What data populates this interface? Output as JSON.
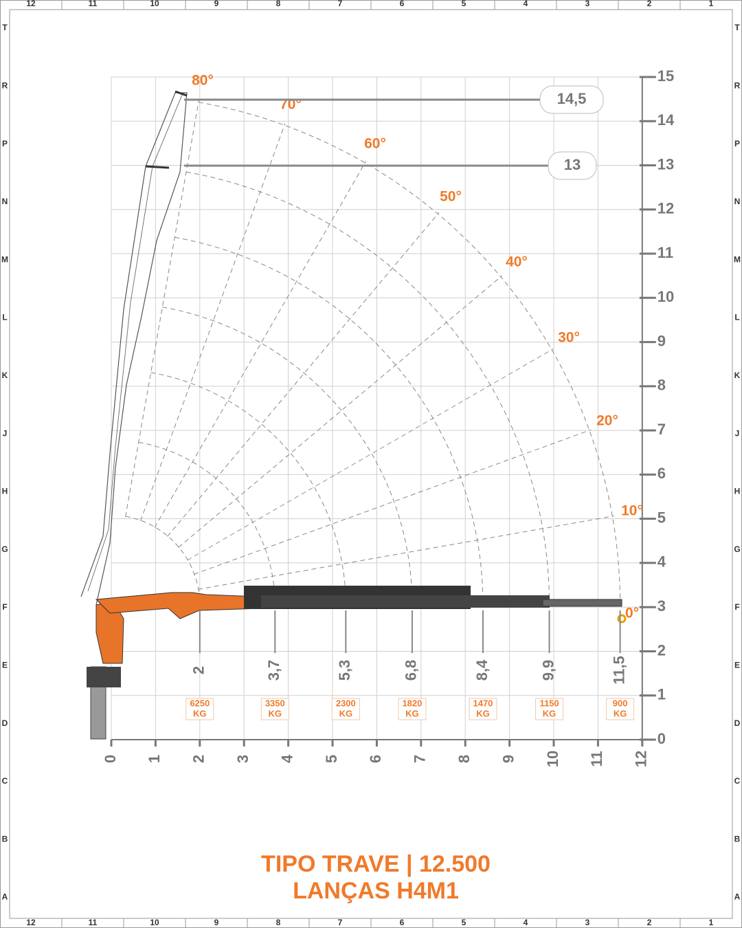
{
  "frame": {
    "columns": [
      "12",
      "11",
      "10",
      "9",
      "8",
      "7",
      "6",
      "5",
      "4",
      "3",
      "2",
      "1"
    ],
    "rows": [
      "T",
      "R",
      "P",
      "N",
      "M",
      "L",
      "K",
      "J",
      "H",
      "G",
      "F",
      "E",
      "D",
      "C",
      "B",
      "A"
    ]
  },
  "axes": {
    "x_ticks": [
      "0",
      "1",
      "2",
      "3",
      "4",
      "5",
      "6",
      "7",
      "8",
      "9",
      "10",
      "11",
      "12"
    ],
    "y_ticks": [
      "0",
      "1",
      "2",
      "3",
      "4",
      "5",
      "6",
      "7",
      "8",
      "9",
      "10",
      "11",
      "12",
      "13",
      "14",
      "15"
    ]
  },
  "angles": [
    "80°",
    "70°",
    "60°",
    "50°",
    "40°",
    "30°",
    "20°",
    "10°",
    "0°"
  ],
  "heights": [
    "14,5",
    "13"
  ],
  "reaches": [
    {
      "reach": "2",
      "load": "6250",
      "unit": "KG"
    },
    {
      "reach": "3,7",
      "load": "3350",
      "unit": "KG"
    },
    {
      "reach": "5,3",
      "load": "2300",
      "unit": "KG"
    },
    {
      "reach": "6,8",
      "load": "1820",
      "unit": "KG"
    },
    {
      "reach": "8,4",
      "load": "1470",
      "unit": "KG"
    },
    {
      "reach": "9,9",
      "load": "1150",
      "unit": "KG"
    },
    {
      "reach": "11,5",
      "load": "900",
      "unit": "KG"
    }
  ],
  "title": [
    "TIPO TRAVE | 12.500",
    "LANÇAS H4M1"
  ]
}
